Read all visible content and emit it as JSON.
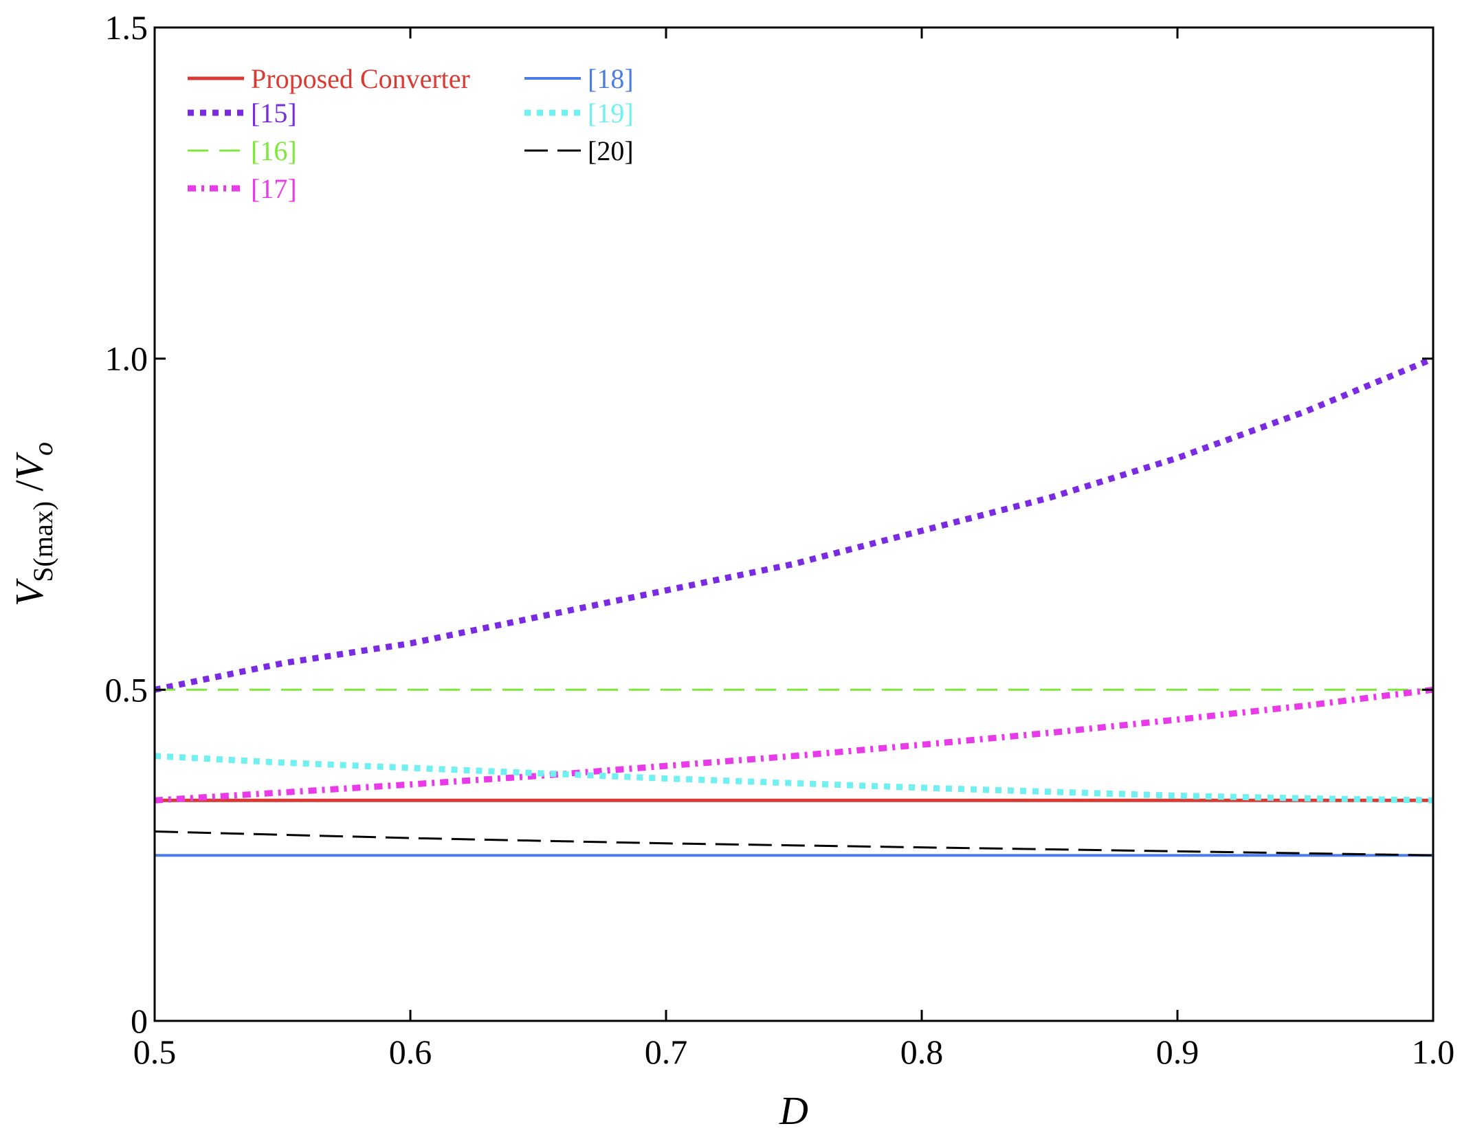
{
  "chart_data": {
    "type": "line",
    "title": "",
    "xlabel": "D",
    "ylabel": {
      "main": "V",
      "sub": "S(max)",
      "sep": " /",
      "main2": "V",
      "sub2": "o"
    },
    "xlim": [
      0.5,
      1.0
    ],
    "ylim": [
      0,
      1.5
    ],
    "xticks": [
      0.5,
      0.6,
      0.7,
      0.8,
      0.9,
      1.0
    ],
    "xtick_labels": [
      "0.5",
      "0.6",
      "0.7",
      "0.8",
      "0.9",
      "1.0"
    ],
    "yticks": [
      0,
      0.5,
      1.0,
      1.5
    ],
    "ytick_labels": [
      "0",
      "0.5",
      "1.0",
      "1.5"
    ],
    "grid": false,
    "legend_position": "top-left",
    "series": [
      {
        "name": "Proposed Converter",
        "color": "#d93a33",
        "style": "solid",
        "formula": "constant 1/3",
        "x": [
          0.5,
          1.0
        ],
        "y": [
          0.333,
          0.333
        ]
      },
      {
        "name": "[15]",
        "color": "#7a2be2",
        "style": "dotted",
        "formula": "1/(2(1-D)+... ) rising",
        "x": [
          0.5,
          0.55,
          0.6,
          0.65,
          0.7,
          0.75,
          0.8,
          0.85,
          0.9,
          0.95,
          1.0
        ],
        "y": [
          0.5,
          0.54,
          0.57,
          0.61,
          0.65,
          0.69,
          0.74,
          0.79,
          0.85,
          0.92,
          1.0
        ]
      },
      {
        "name": "[16]",
        "color": "#7ce83a",
        "style": "dashed",
        "x": [
          0.5,
          1.0
        ],
        "y": [
          0.5,
          0.5
        ]
      },
      {
        "name": "[17]",
        "color": "#e83ae8",
        "style": "dashdot",
        "x": [
          0.5,
          0.55,
          0.6,
          0.65,
          0.7,
          0.75,
          0.8,
          0.85,
          0.9,
          0.95,
          1.0
        ],
        "y": [
          0.333,
          0.345,
          0.357,
          0.37,
          0.385,
          0.4,
          0.417,
          0.435,
          0.455,
          0.476,
          0.5
        ]
      },
      {
        "name": "[18]",
        "color": "#4a7de6",
        "style": "solid",
        "x": [
          0.5,
          1.0
        ],
        "y": [
          0.25,
          0.25
        ]
      },
      {
        "name": "[19]",
        "color": "#70f0f0",
        "style": "dotted",
        "x": [
          0.5,
          0.55,
          0.6,
          0.65,
          0.7,
          0.75,
          0.8,
          0.85,
          0.9,
          0.95,
          1.0
        ],
        "y": [
          0.4,
          0.39,
          0.382,
          0.374,
          0.366,
          0.359,
          0.352,
          0.346,
          0.34,
          0.336,
          0.333
        ]
      },
      {
        "name": "[20]",
        "color": "#000000",
        "style": "longdash",
        "x": [
          0.5,
          0.55,
          0.6,
          0.65,
          0.7,
          0.75,
          0.8,
          0.85,
          0.9,
          0.95,
          1.0
        ],
        "y": [
          0.286,
          0.281,
          0.276,
          0.272,
          0.268,
          0.265,
          0.262,
          0.259,
          0.256,
          0.253,
          0.25
        ]
      }
    ]
  }
}
